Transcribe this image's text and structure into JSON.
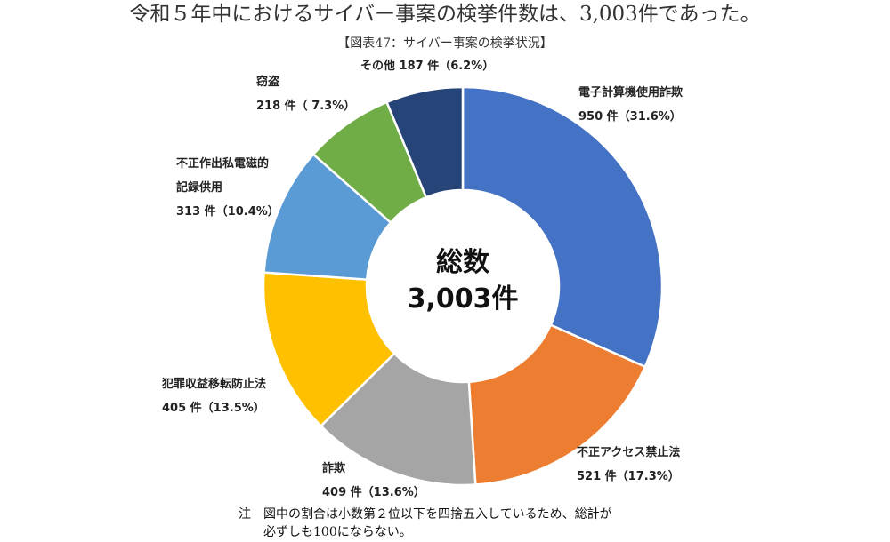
{
  "headline": "令和５年中におけるサイバー事案の検挙件数は、3,003件であった。",
  "caption": "【図表47：サイバー事案の検挙状況】",
  "center": {
    "line1": "総数",
    "line2": "3,003件"
  },
  "note": {
    "line1": "注　図中の割合は小数第２位以下を四捨五入しているため、総計が",
    "line2": "　　必ずしも100にならない。"
  },
  "chart_data": {
    "type": "pie",
    "variant": "donut",
    "total": 3003,
    "title": "【図表47：サイバー事案の検挙状況】",
    "slices": [
      {
        "label": "電子計算機使用詐欺",
        "value": 950,
        "percent": "31.6%",
        "color": "#4472C4",
        "name_lines": [
          "電子計算機使用詐欺"
        ],
        "value_text": "950 件（31.6%）"
      },
      {
        "label": "不正アクセス禁止法",
        "value": 521,
        "percent": "17.3%",
        "color": "#ED7D31",
        "name_lines": [
          "不正アクセス禁止法"
        ],
        "value_text": "521 件（17.3%）"
      },
      {
        "label": "詐欺",
        "value": 409,
        "percent": "13.6%",
        "color": "#A5A5A5",
        "name_lines": [
          "詐欺"
        ],
        "value_text": "409 件（13.6%）"
      },
      {
        "label": "犯罪収益移転防止法",
        "value": 405,
        "percent": "13.5%",
        "color": "#FFC000",
        "name_lines": [
          "犯罪収益移転防止法"
        ],
        "value_text": "405 件（13.5%）"
      },
      {
        "label": "不正作出私電磁的記録供用",
        "value": 313,
        "percent": "10.4%",
        "color": "#5B9BD5",
        "name_lines": [
          "不正作出私電磁的",
          "記録供用"
        ],
        "value_text": "313 件（10.4%）"
      },
      {
        "label": "窃盗",
        "value": 218,
        "percent": "7.3%",
        "color": "#70AD47",
        "name_lines": [
          "窃盗"
        ],
        "value_text": "218 件（ 7.3%）"
      },
      {
        "label": "その他",
        "value": 187,
        "percent": "6.2%",
        "color": "#264478",
        "name_lines": [
          "その他 187 件（6.2%）"
        ],
        "value_text": ""
      }
    ]
  }
}
